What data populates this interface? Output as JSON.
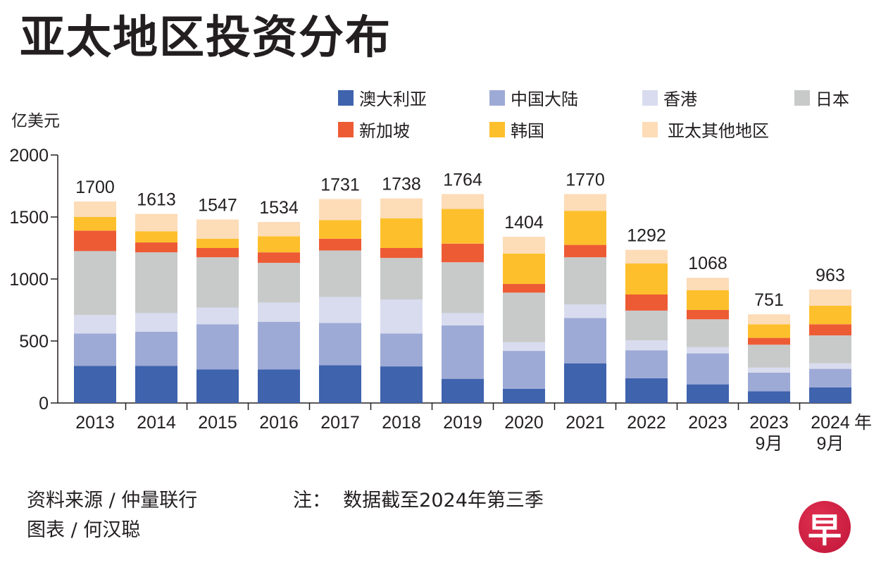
{
  "title": "亚太地区投资分布",
  "unit_label": "亿美元",
  "footer": {
    "source": "资料来源 / 仲量联行",
    "chart_by": "图表 / 何汉聪",
    "note": "注：  数据截至2024年第三季"
  },
  "logo_char": "早",
  "chart_data": {
    "type": "bar",
    "stacked": true,
    "title": "亚太地区投资分布",
    "xlabel": "年",
    "ylabel": "亿美元",
    "ylim": [
      0,
      2000
    ],
    "yticks": [
      0,
      500,
      1000,
      1500,
      2000
    ],
    "grid": false,
    "legend_position": "top-right",
    "categories": [
      "2013",
      "2014",
      "2015",
      "2016",
      "2017",
      "2018",
      "2019",
      "2020",
      "2021",
      "2022",
      "2023",
      "2023\n9月",
      "2024\n9月"
    ],
    "category_lines": [
      [
        "2013"
      ],
      [
        "2014"
      ],
      [
        "2015"
      ],
      [
        "2016"
      ],
      [
        "2017"
      ],
      [
        "2018"
      ],
      [
        "2019"
      ],
      [
        "2020"
      ],
      [
        "2021"
      ],
      [
        "2022"
      ],
      [
        "2023"
      ],
      [
        "2023",
        "9月"
      ],
      [
        "2024",
        "9月"
      ]
    ],
    "x_suffix": "年",
    "totals": [
      1700,
      1613,
      1547,
      1534,
      1731,
      1738,
      1764,
      1404,
      1770,
      1292,
      1068,
      751,
      963
    ],
    "series": [
      {
        "name": "澳大利亚",
        "color": "#3f63ad",
        "values": [
          300,
          300,
          270,
          270,
          305,
          295,
          195,
          115,
          320,
          200,
          150,
          95,
          125
        ]
      },
      {
        "name": "中国大陆",
        "color": "#9eaad6",
        "values": [
          260,
          275,
          365,
          385,
          340,
          265,
          430,
          305,
          365,
          225,
          250,
          150,
          150
        ]
      },
      {
        "name": "香港",
        "color": "#d8dcee",
        "values": [
          150,
          150,
          135,
          155,
          210,
          275,
          100,
          70,
          110,
          80,
          50,
          40,
          45
        ]
      },
      {
        "name": "日本",
        "color": "#c8caca",
        "values": [
          515,
          490,
          405,
          320,
          375,
          335,
          410,
          400,
          380,
          240,
          225,
          185,
          225
        ]
      },
      {
        "name": "新加坡",
        "color": "#ed5b35",
        "values": [
          165,
          80,
          75,
          85,
          95,
          80,
          150,
          70,
          100,
          130,
          75,
          55,
          90
        ]
      },
      {
        "name": "韩国",
        "color": "#fdc02c",
        "values": [
          110,
          90,
          75,
          130,
          150,
          240,
          280,
          245,
          275,
          250,
          160,
          110,
          150
        ]
      },
      {
        "name": "亚太其他地区",
        "color": "#fddcb8",
        "values": [
          125,
          140,
          155,
          115,
          170,
          160,
          120,
          135,
          135,
          110,
          100,
          80,
          130
        ]
      }
    ]
  }
}
